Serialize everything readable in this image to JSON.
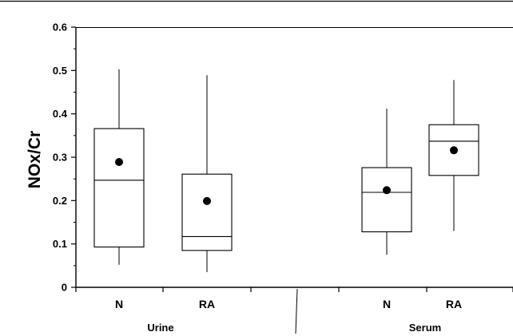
{
  "chart_data": {
    "type": "box",
    "ylabel": "NOx/Cr",
    "ylim": [
      0,
      0.6
    ],
    "yticks": [
      "0",
      "0.1",
      "0.2",
      "0.3",
      "0.4",
      "0.5",
      "0.6"
    ],
    "grid": false,
    "groups": [
      {
        "name": "Urine",
        "categories": [
          {
            "label": "N",
            "min": 0.052,
            "q1": 0.093,
            "median": 0.247,
            "q3": 0.366,
            "max": 0.503,
            "mean": 0.289
          },
          {
            "label": "RA",
            "min": 0.035,
            "q1": 0.085,
            "median": 0.117,
            "q3": 0.261,
            "max": 0.489,
            "mean": 0.199
          }
        ]
      },
      {
        "name": "Serum",
        "categories": [
          {
            "label": "N",
            "min": 0.075,
            "q1": 0.128,
            "median": 0.219,
            "q3": 0.276,
            "max": 0.412,
            "mean": 0.224
          },
          {
            "label": "RA",
            "min": 0.13,
            "q1": 0.258,
            "median": 0.337,
            "q3": 0.375,
            "max": 0.478,
            "mean": 0.316
          }
        ]
      }
    ]
  },
  "colors": {
    "line": "#000000",
    "mean_marker": "#000000",
    "background": "#ffffff"
  }
}
